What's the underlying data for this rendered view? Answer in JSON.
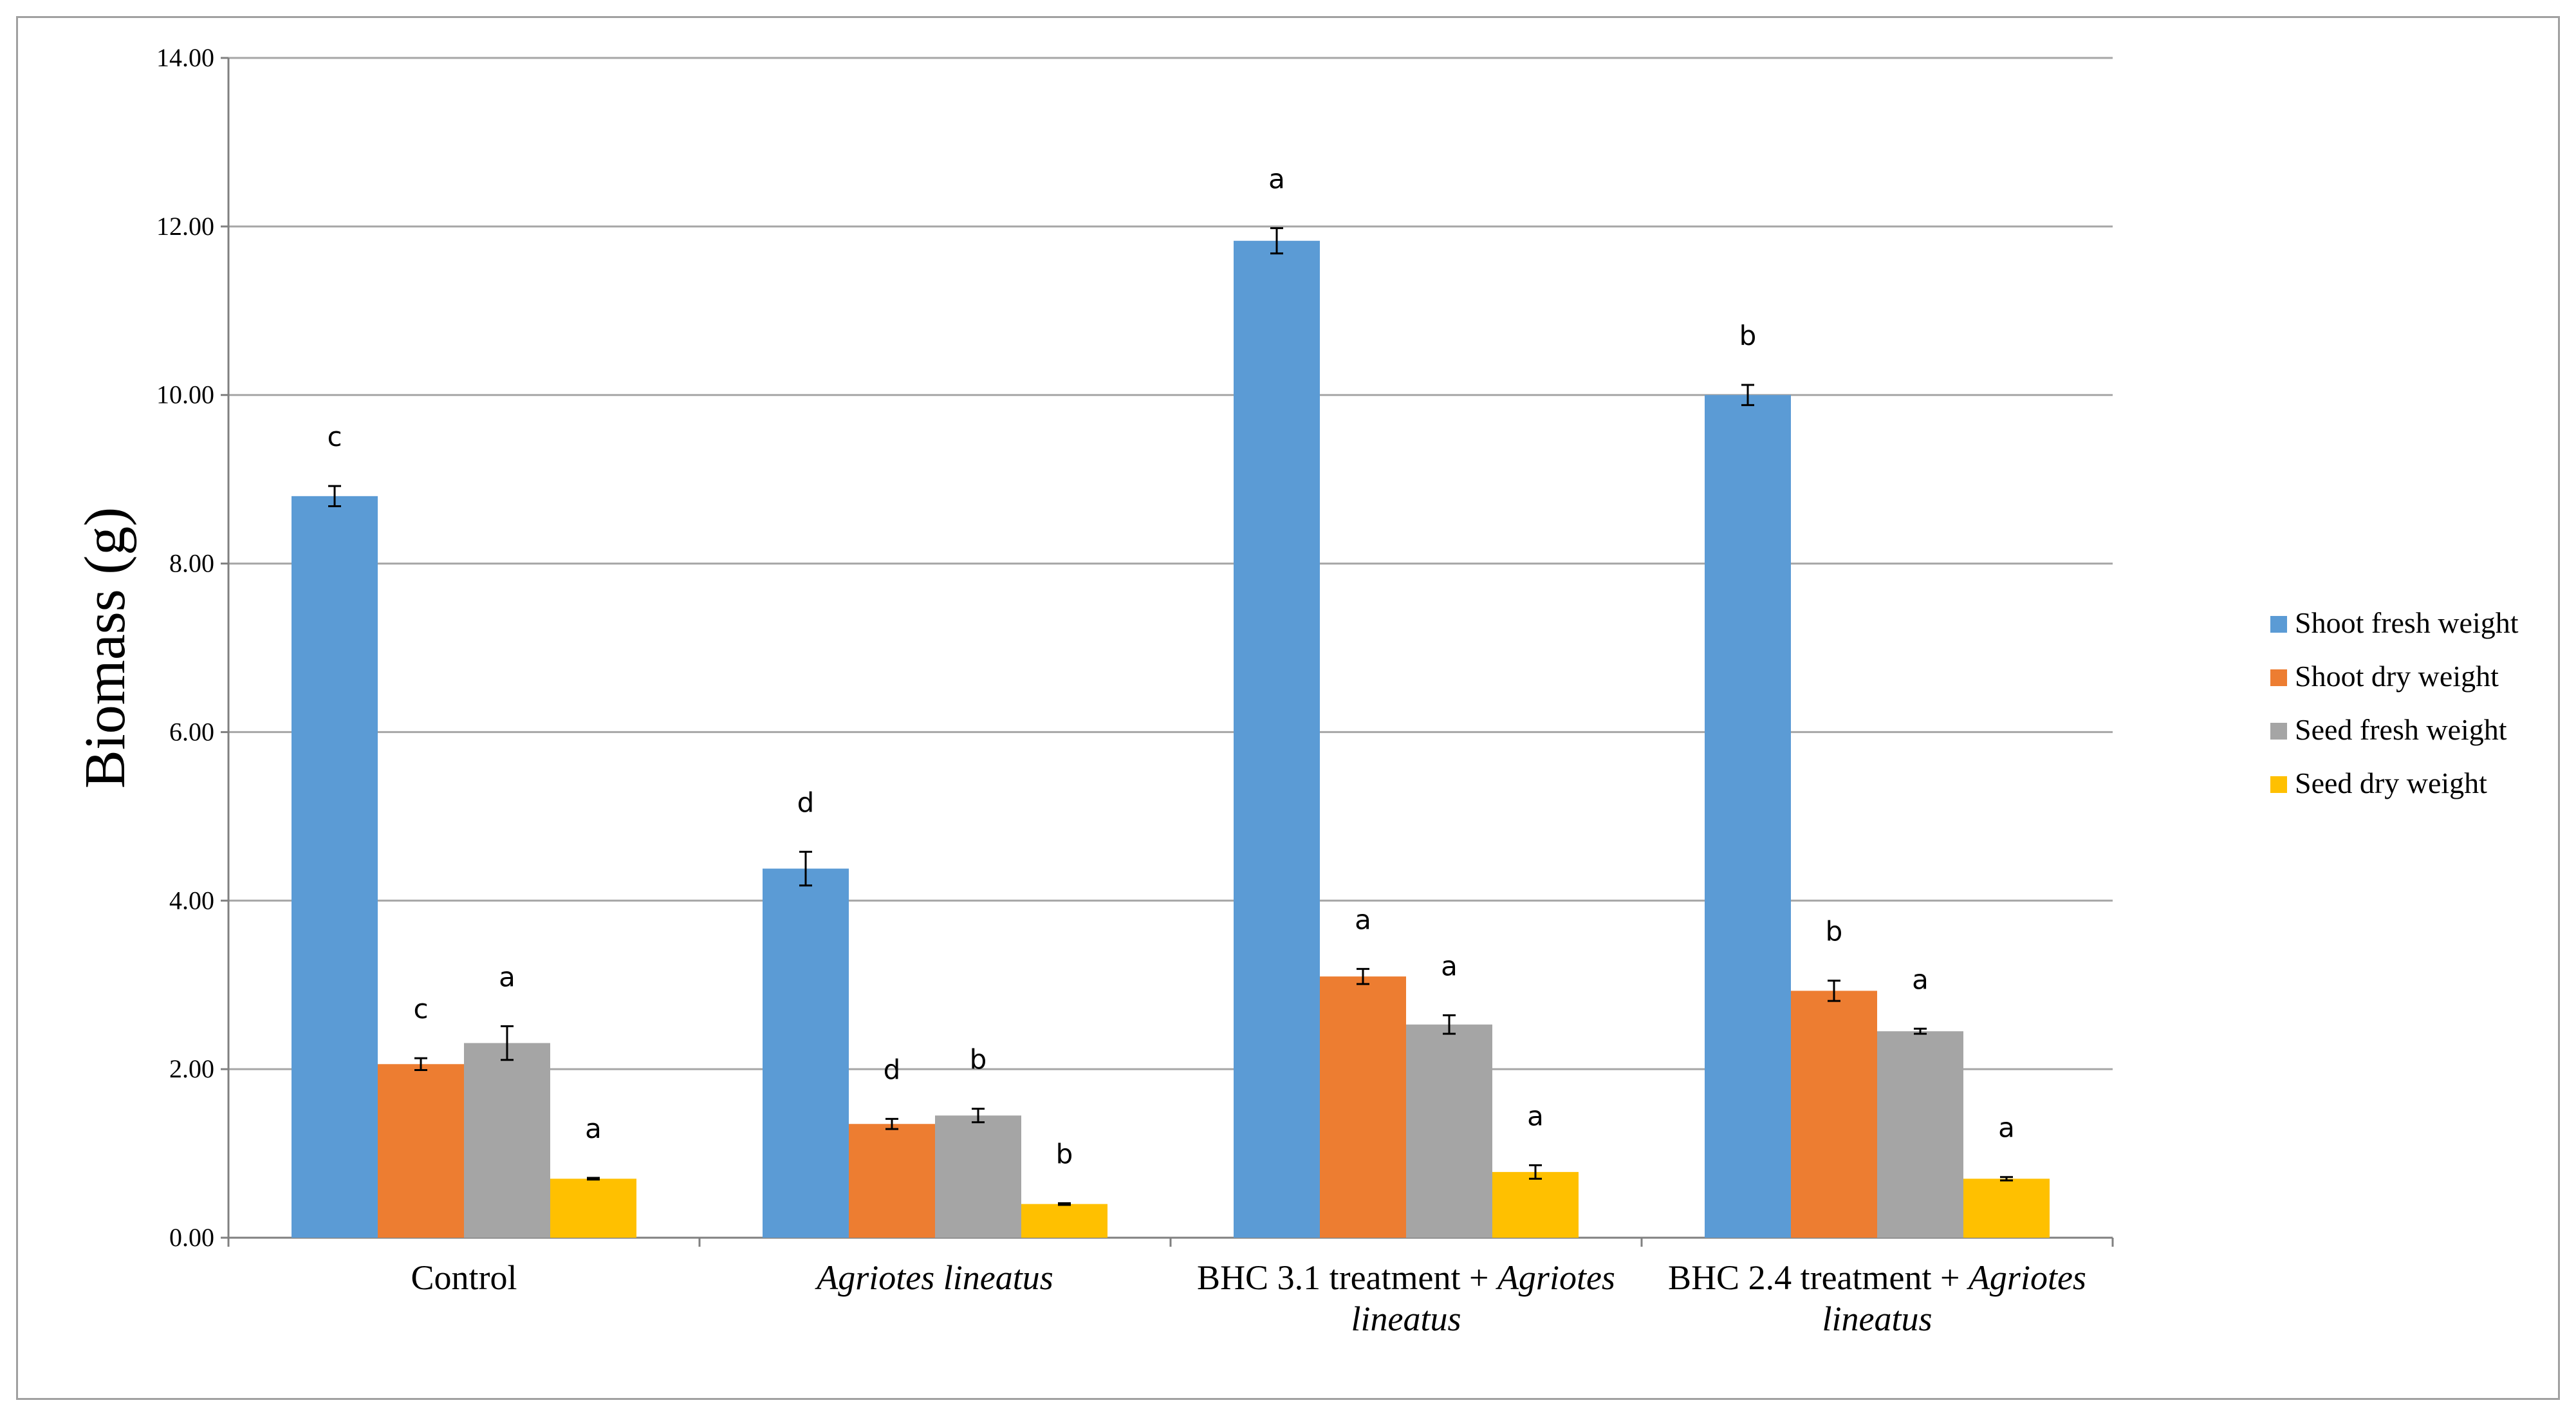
{
  "chart_data": {
    "type": "bar",
    "title": "",
    "ylabel": "Biomass (g)",
    "xlabel": "",
    "ylim": [
      0,
      14
    ],
    "yticks": [
      "0.00",
      "2.00",
      "4.00",
      "6.00",
      "8.00",
      "10.00",
      "12.00",
      "14.00"
    ],
    "grid": true,
    "legend_position": "right",
    "categories": [
      {
        "label": "Control",
        "lines": [
          [
            {
              "text": "Control",
              "italic": false
            }
          ]
        ]
      },
      {
        "label": "Agriotes lineatus",
        "lines": [
          [
            {
              "text": "Agriotes lineatus",
              "italic": true
            }
          ]
        ]
      },
      {
        "label": "BHC 3.1 treatment + Agriotes lineatus",
        "lines": [
          [
            {
              "text": "BHC 3.1 treatment + ",
              "italic": false
            },
            {
              "text": "Agriotes",
              "italic": true
            }
          ],
          [
            {
              "text": "lineatus",
              "italic": true
            }
          ]
        ]
      },
      {
        "label": "BHC 2.4 treatment + Agriotes lineatus",
        "lines": [
          [
            {
              "text": "BHC 2.4 treatment + ",
              "italic": false
            },
            {
              "text": "Agriotes",
              "italic": true
            }
          ],
          [
            {
              "text": "lineatus",
              "italic": true
            }
          ]
        ]
      }
    ],
    "series": [
      {
        "name": "Shoot fresh weight",
        "color": "#5B9BD5",
        "values": [
          8.8,
          4.38,
          11.83,
          10.0
        ],
        "errors": [
          0.12,
          0.2,
          0.15,
          0.12
        ],
        "letters": [
          "c",
          "d",
          "a",
          "b"
        ]
      },
      {
        "name": "Shoot dry weight",
        "color": "#ED7D31",
        "values": [
          2.06,
          1.35,
          3.1,
          2.93
        ],
        "errors": [
          0.07,
          0.06,
          0.09,
          0.12
        ],
        "letters": [
          "c",
          "d",
          "a",
          "b"
        ]
      },
      {
        "name": "Seed fresh weight",
        "color": "#A5A5A5",
        "values": [
          2.31,
          1.45,
          2.53,
          2.45
        ],
        "errors": [
          0.2,
          0.08,
          0.11,
          0.03
        ],
        "letters": [
          "a",
          "b",
          "a",
          "a"
        ]
      },
      {
        "name": "Seed dry weight",
        "color": "#FFC000",
        "values": [
          0.7,
          0.4,
          0.78,
          0.7
        ],
        "errors": [
          0.01,
          0.01,
          0.08,
          0.02
        ],
        "letters": [
          "a",
          "b",
          "a",
          "a"
        ]
      }
    ]
  }
}
